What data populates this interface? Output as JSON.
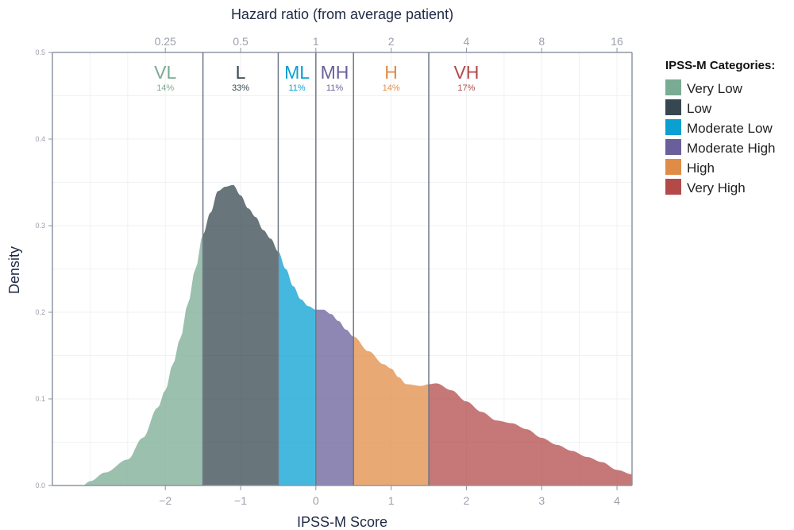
{
  "chart_data": {
    "type": "area",
    "title": "",
    "xlabel": "IPSS-M Score",
    "ylabel": "Density",
    "top_xlabel": "Hazard ratio (from average patient)",
    "xlim": [
      -3.5,
      4.2
    ],
    "ylim": [
      0,
      0.5
    ],
    "x_ticks": [
      -2,
      -1,
      0,
      1,
      2,
      3,
      4
    ],
    "x_tick_labels": [
      "−2",
      "−1",
      "0",
      "1",
      "2",
      "3",
      "4"
    ],
    "y_ticks": [
      0,
      0.1,
      0.2,
      0.3,
      0.4,
      0.5
    ],
    "y_tick_labels": [
      "0.0",
      "0.1",
      "0.2",
      "0.3",
      "0.4",
      "0.5"
    ],
    "top_ticks_score": [
      -2,
      -1,
      0,
      1,
      2,
      3,
      4
    ],
    "top_tick_labels": [
      "0.25",
      "0.5",
      "1",
      "2",
      "4",
      "8",
      "16"
    ],
    "grid": true,
    "legend_placement": "right",
    "cutpoints": [
      -1.5,
      -0.5,
      0,
      0.5,
      1.5
    ],
    "density": {
      "x": [
        -3.5,
        -3.1,
        -3.0,
        -2.8,
        -2.5,
        -2.3,
        -2.1,
        -2.0,
        -1.9,
        -1.8,
        -1.7,
        -1.6,
        -1.5,
        -1.4,
        -1.3,
        -1.2,
        -1.1,
        -1.0,
        -0.9,
        -0.8,
        -0.7,
        -0.6,
        -0.5,
        -0.4,
        -0.3,
        -0.2,
        -0.1,
        0.0,
        0.1,
        0.2,
        0.3,
        0.4,
        0.5,
        0.7,
        0.9,
        1.0,
        1.1,
        1.2,
        1.4,
        1.5,
        1.6,
        1.8,
        2.0,
        2.2,
        2.4,
        2.6,
        2.8,
        3.0,
        3.2,
        3.4,
        3.6,
        3.8,
        4.0,
        4.2
      ],
      "y": [
        0,
        0,
        0.005,
        0.015,
        0.03,
        0.055,
        0.09,
        0.11,
        0.14,
        0.17,
        0.21,
        0.25,
        0.29,
        0.315,
        0.34,
        0.345,
        0.347,
        0.335,
        0.32,
        0.31,
        0.295,
        0.285,
        0.27,
        0.25,
        0.23,
        0.215,
        0.207,
        0.203,
        0.203,
        0.198,
        0.19,
        0.18,
        0.172,
        0.155,
        0.14,
        0.135,
        0.125,
        0.117,
        0.115,
        0.117,
        0.118,
        0.11,
        0.097,
        0.085,
        0.075,
        0.072,
        0.065,
        0.055,
        0.047,
        0.04,
        0.033,
        0.027,
        0.018,
        0.013
      ]
    },
    "categories": [
      {
        "abbr": "VL",
        "name": "Very Low",
        "percent": "14%",
        "color": "#7aab93",
        "range": [
          -3.5,
          -1.5
        ]
      },
      {
        "abbr": "L",
        "name": "Low",
        "percent": "33%",
        "color": "#36474f",
        "range": [
          -1.5,
          -0.5
        ]
      },
      {
        "abbr": "ML",
        "name": "Moderate Low",
        "percent": "11%",
        "color": "#0aa0d1",
        "range": [
          -0.5,
          0
        ]
      },
      {
        "abbr": "MH",
        "name": "Moderate High",
        "percent": "11%",
        "color": "#6a5f9a",
        "range": [
          0,
          0.5
        ]
      },
      {
        "abbr": "H",
        "name": "High",
        "percent": "14%",
        "color": "#e08c47",
        "range": [
          0.5,
          1.5
        ]
      },
      {
        "abbr": "VH",
        "name": "Very High",
        "percent": "17%",
        "color": "#b34a49",
        "range": [
          1.5,
          4.2
        ]
      }
    ],
    "legend_title": "IPSS-M Categories:"
  }
}
